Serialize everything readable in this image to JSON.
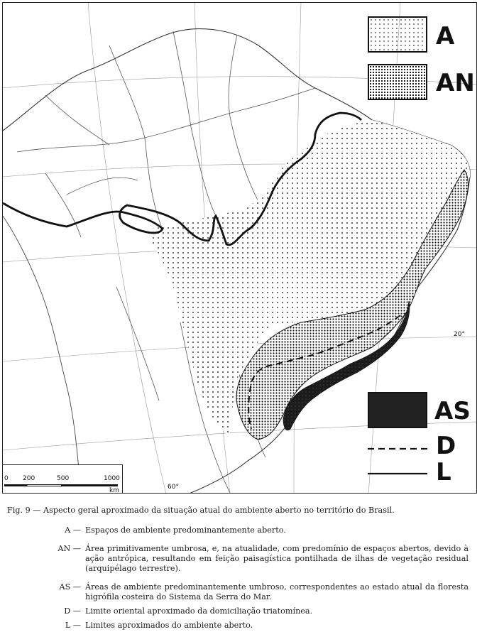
{
  "legend": {
    "A": {
      "label": "A",
      "pattern": "sparse-dots"
    },
    "AN": {
      "label": "AN",
      "pattern": "dense-dots"
    },
    "AS": {
      "label": "AS",
      "pattern": "dark-solid"
    },
    "D": {
      "label": "D",
      "line": "dashed"
    },
    "L": {
      "label": "L",
      "line": "solid"
    }
  },
  "scale_bar": {
    "ticks": [
      "0",
      "200",
      "500",
      "1000"
    ],
    "unit": "km"
  },
  "graticule_labels": {
    "lat": "20°",
    "lon": "60°"
  },
  "colors": {
    "ink": "#111111",
    "background": "#ffffff",
    "dark_fill": "#1c1c1c"
  },
  "caption": {
    "title": "Fig. 9 — Aspecto geral aproximado da situação atual do ambiente aberto no território do Brasil.",
    "items": [
      {
        "code": "A —",
        "text": "Espaços de ambiente predominantemente aberto."
      },
      {
        "code": "AN —",
        "text": "Área primitivamente umbrosa, e, na atualidade, com predomínio de espaços abertos, devido à ação antrópica, resultando em feição paisagística pontilhada de ilhas de vegetação residual (arquipélago terrestre)."
      },
      {
        "code": "AS —",
        "text": "Áreas de ambiente predominantemente umbroso, correspondentes ao estado atual da floresta higrófila costeira do Sistema da Serra do Mar."
      },
      {
        "code": "D —",
        "text": "Limite oriental aproximado da domiciliação triatomínea."
      },
      {
        "code": "L —",
        "text": "Limites aproximados do ambiente aberto."
      }
    ]
  }
}
